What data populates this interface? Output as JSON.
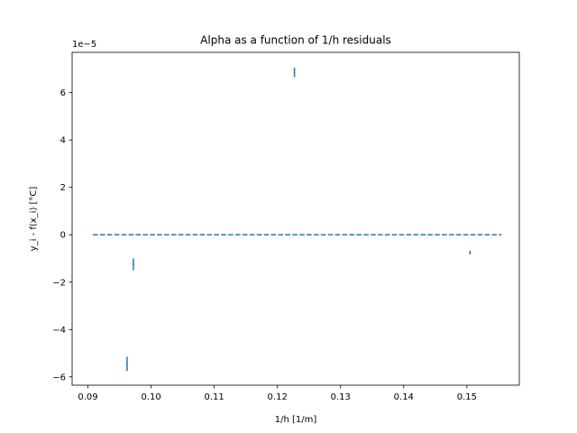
{
  "chart_data": {
    "type": "scatter",
    "title": "Alpha as a function of 1/h residuals",
    "xlabel": "1/h [1/m]",
    "ylabel": "y_i - f(x_i) [°C]",
    "y_offset_label": "1e−5",
    "xlim": [
      0.0875,
      0.1583
    ],
    "ylim": [
      -6.35,
      7.7
    ],
    "x_ticks": [
      0.09,
      0.1,
      0.11,
      0.12,
      0.13,
      0.14,
      0.15
    ],
    "x_tick_labels": [
      "0.09",
      "0.10",
      "0.11",
      "0.12",
      "0.13",
      "0.14",
      "0.15"
    ],
    "y_ticks": [
      -6,
      -4,
      -2,
      0,
      2,
      4,
      6
    ],
    "y_tick_labels": [
      "−6",
      "−4",
      "−2",
      "0",
      "2",
      "4",
      "6"
    ],
    "grid": false,
    "series_color": "#1f77b4",
    "points": [
      {
        "x": 0.0962,
        "y": -5.45,
        "err": 0.3
      },
      {
        "x": 0.0972,
        "y": -1.25,
        "err": 0.25
      },
      {
        "x": 0.1227,
        "y": 6.85,
        "err": 0.2
      },
      {
        "x": 0.1505,
        "y": -0.75,
        "err": 0.08
      }
    ],
    "reference_line": {
      "y": 0,
      "x_start": 0.0908,
      "x_end": 0.1555,
      "style": "dashed"
    }
  }
}
